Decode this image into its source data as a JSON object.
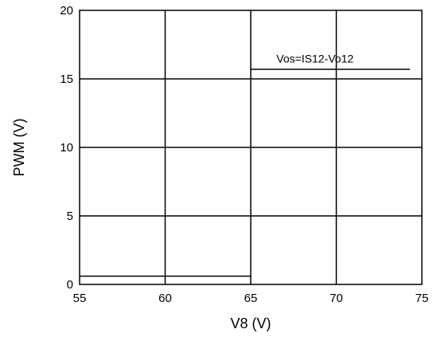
{
  "chart_data": {
    "type": "line",
    "title": "",
    "xlabel": "V8 (V)",
    "ylabel": "PWM (V)",
    "xlim": [
      55,
      75
    ],
    "ylim": [
      0,
      20
    ],
    "x_ticks": [
      55,
      60,
      65,
      70,
      75
    ],
    "y_ticks": [
      0,
      5,
      10,
      15,
      20
    ],
    "x_tick_labels": [
      "55",
      "60",
      "65",
      "70",
      "75"
    ],
    "y_tick_labels": [
      "0",
      "5",
      "10",
      "15",
      "20"
    ],
    "grid": true,
    "series": [
      {
        "color": "#000000",
        "segments": [
          [
            [
              55,
              0.6
            ],
            [
              65,
              0.6
            ]
          ],
          [
            [
              65,
              15.7
            ],
            [
              74.3,
              15.7
            ]
          ]
        ]
      }
    ],
    "annotations": [
      {
        "text": "Vos=IS12-Vo12",
        "x": 66.5,
        "y": 16.2
      }
    ]
  }
}
